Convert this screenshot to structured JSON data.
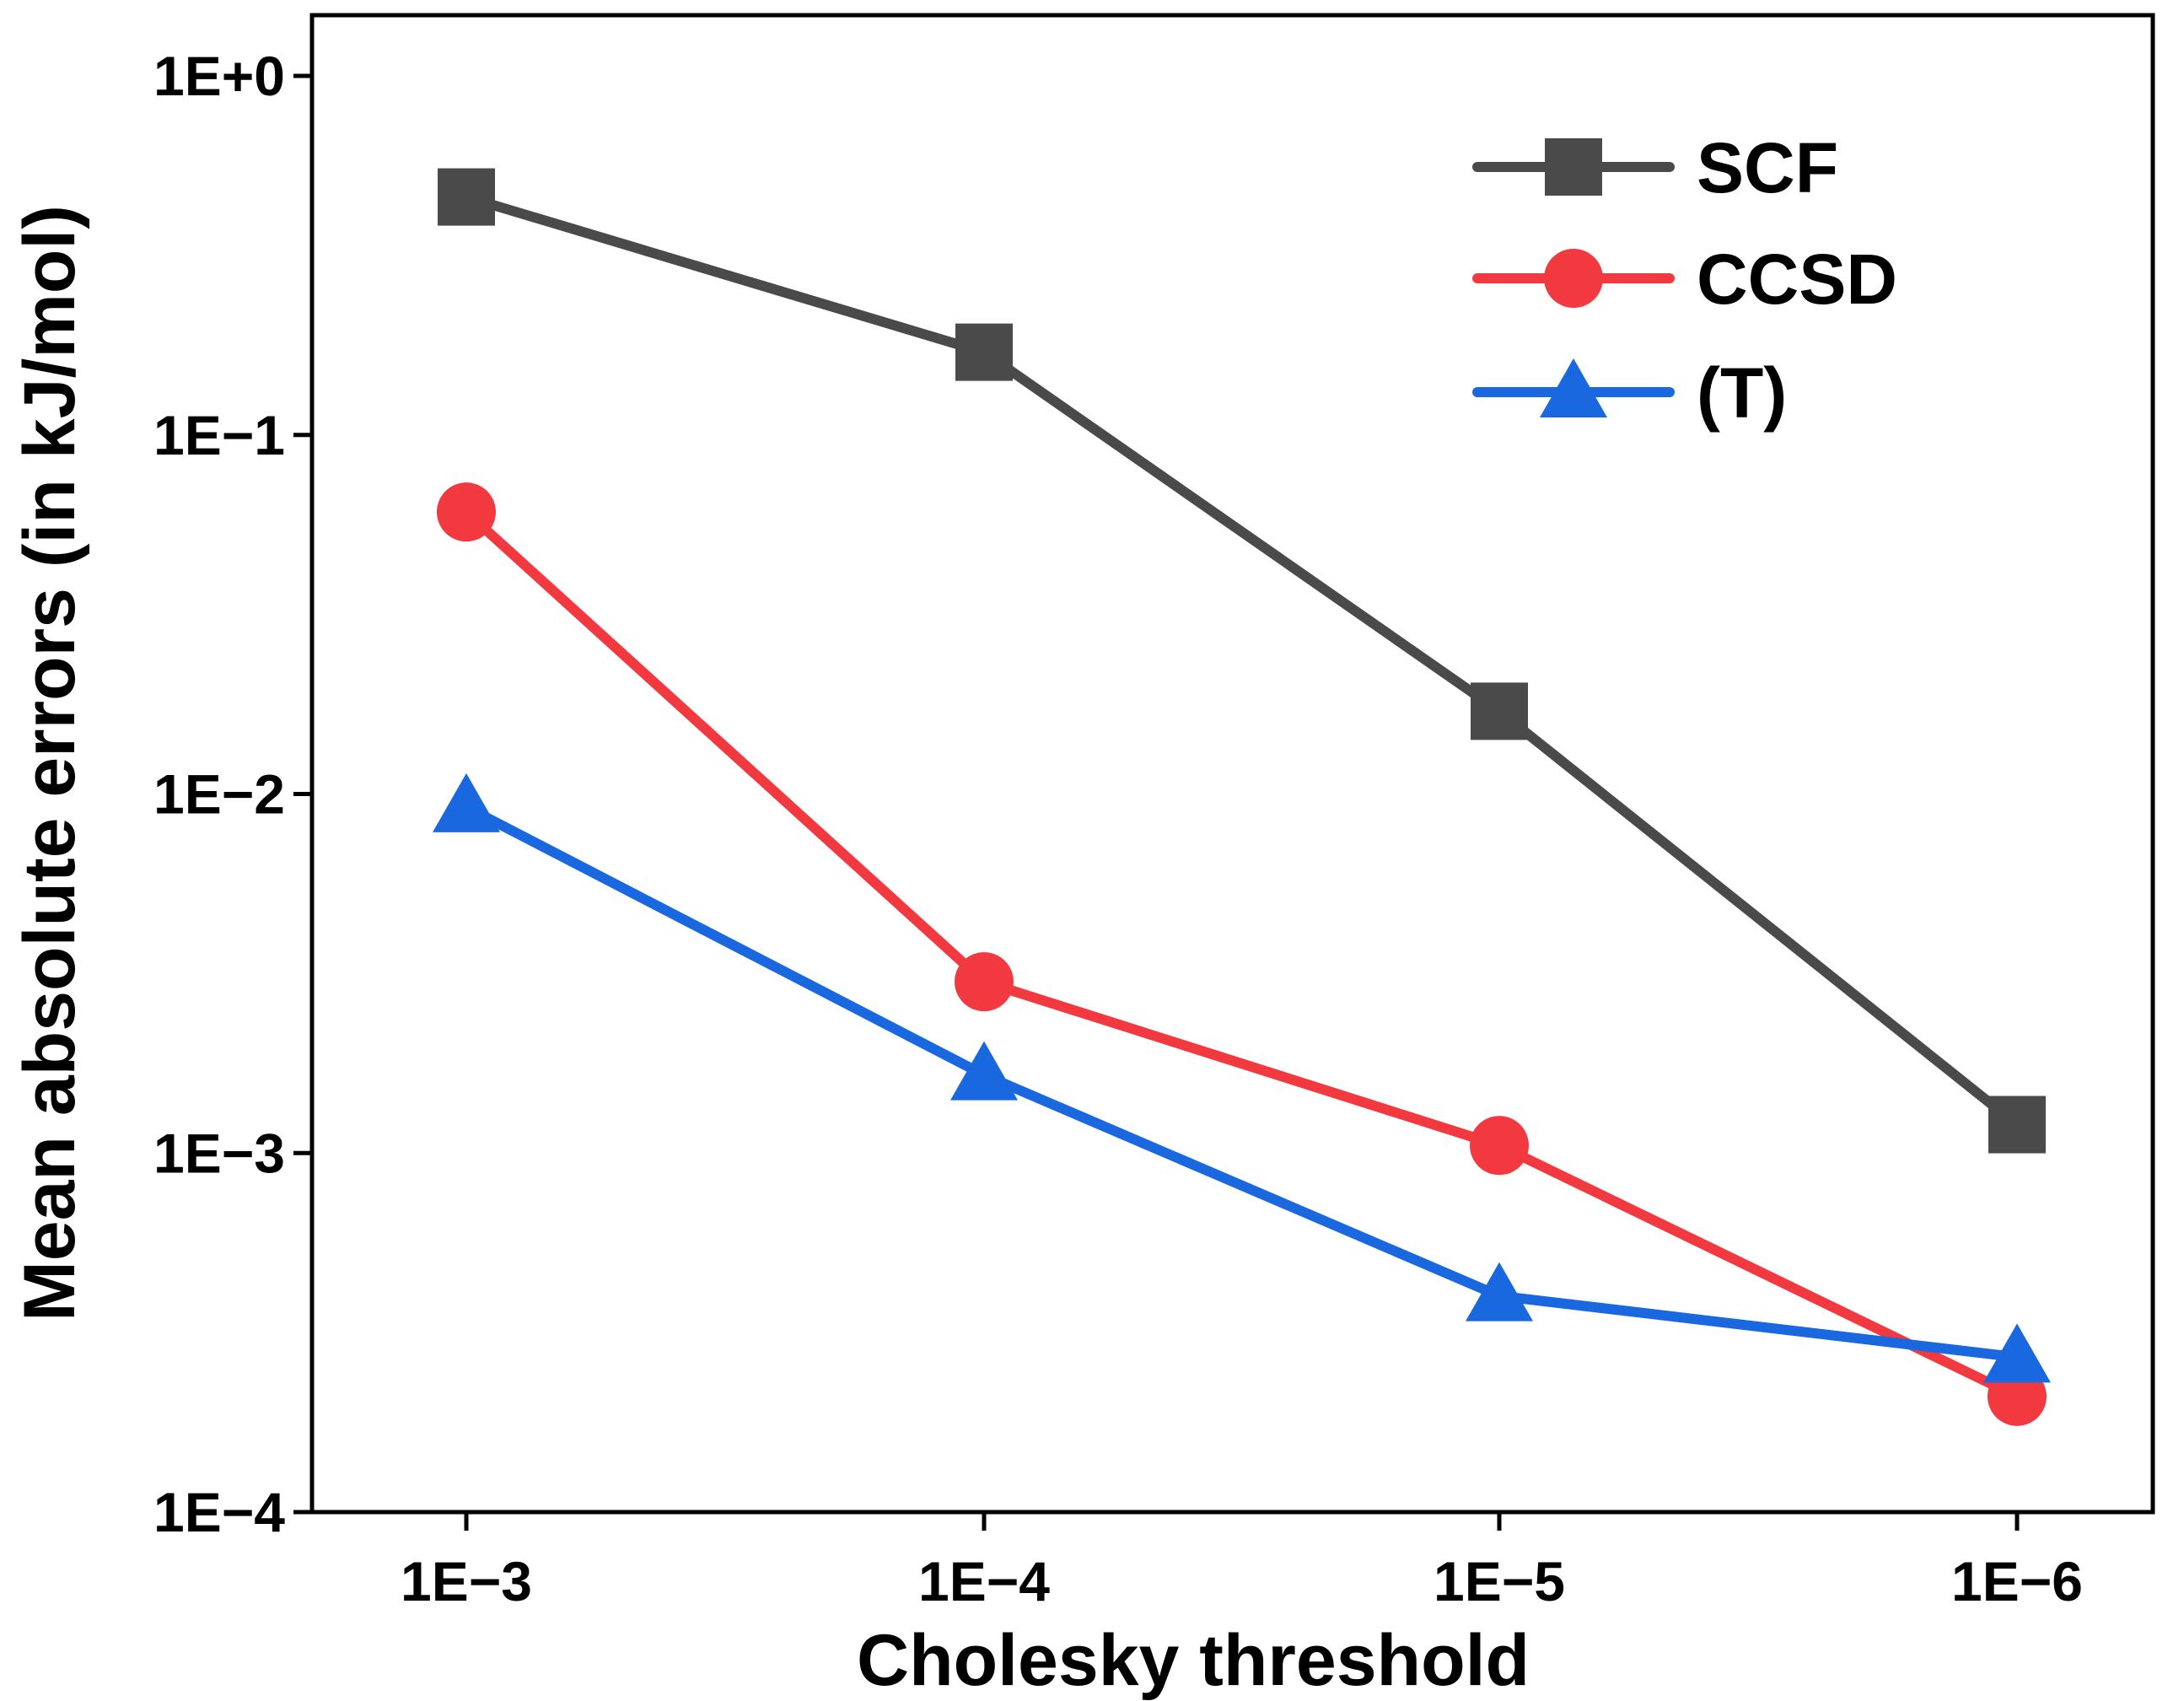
{
  "chart_data": {
    "type": "line",
    "title": "",
    "xlabel": "Cholesky threshold",
    "ylabel": "Mean absolute errors (in kJ/mol)",
    "yscale": "log",
    "ylim": [
      0.0001,
      1
    ],
    "categories": [
      "1E−3",
      "1E−4",
      "1E−5",
      "1E−6"
    ],
    "y_ticks": [
      {
        "value": 1,
        "label": "1E+0"
      },
      {
        "value": 0.1,
        "label": "1E−1"
      },
      {
        "value": 0.01,
        "label": "1E−2"
      },
      {
        "value": 0.001,
        "label": "1E−3"
      },
      {
        "value": 0.0001,
        "label": "1E−4"
      }
    ],
    "grid": false,
    "legend_position": "top-right",
    "series": [
      {
        "name": "SCF",
        "marker": "square",
        "color": "#4a4a4a",
        "values": [
          0.46,
          0.17,
          0.017,
          0.0012
        ]
      },
      {
        "name": "CCSD",
        "marker": "circle",
        "color": "#f2393f",
        "values": [
          0.061,
          0.003,
          0.00105,
          0.00021
        ]
      },
      {
        "name": "(T)",
        "marker": "triangle",
        "color": "#1a68e0",
        "values": [
          0.0092,
          0.00165,
          0.0004,
          0.00027
        ]
      }
    ]
  }
}
